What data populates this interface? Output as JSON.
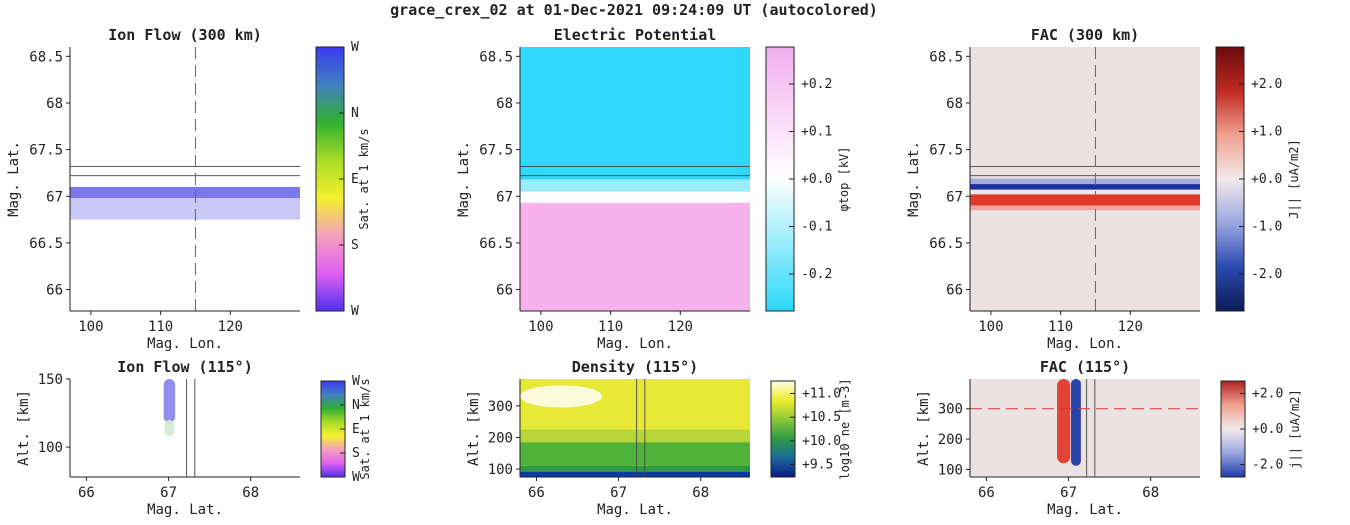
{
  "figure": {
    "title": "grace_crex_02 at 01-Dec-2021 09:24:09 UT (autocolored)"
  },
  "chart_data": [
    {
      "id": "ion-flow-map",
      "type": "heatmap",
      "title": "Ion Flow (300 km)",
      "xlabel": "Mag. Lon.",
      "ylabel": "Mag. Lat.",
      "xlim": [
        97,
        130
      ],
      "ylim": [
        65.77,
        68.6
      ],
      "xticks": [
        {
          "v": 100,
          "t": "100"
        },
        {
          "v": 110,
          "t": "110"
        },
        {
          "v": 120,
          "t": "120"
        }
      ],
      "yticks": [
        {
          "v": 68.5,
          "t": "68.5"
        },
        {
          "v": 68,
          "t": "68"
        },
        {
          "v": 67.5,
          "t": "67.5"
        },
        {
          "v": 67,
          "t": "67"
        },
        {
          "v": 66.5,
          "t": "66.5"
        },
        {
          "v": 66,
          "t": "66"
        }
      ],
      "background": "#ffffff",
      "bands": [
        {
          "y0": 66.98,
          "y1": 67.1,
          "color": "#7c78ec"
        },
        {
          "y0": 66.75,
          "y1": 66.98,
          "color": "#c9c8f6"
        }
      ],
      "hlines": [
        67.22,
        67.32
      ],
      "vline_dashed": 115,
      "colorbar": {
        "label": "Sat. at 1 km/s",
        "ticks": [
          "W",
          "N",
          "E",
          "S",
          "W"
        ],
        "stops": [
          "#3a3aef",
          "#4080c0",
          "#30b030",
          "#a8dc28",
          "#f4f02c",
          "#f4a0c0",
          "#e060f0",
          "#5030f0"
        ]
      }
    },
    {
      "id": "potential-map",
      "type": "heatmap",
      "title": "Electric Potential",
      "xlabel": "Mag. Lon.",
      "ylabel": "Mag. Lat.",
      "xlim": [
        97,
        130
      ],
      "ylim": [
        65.77,
        68.6
      ],
      "xticks": [
        {
          "v": 100,
          "t": "100"
        },
        {
          "v": 110,
          "t": "110"
        },
        {
          "v": 120,
          "t": "120"
        }
      ],
      "yticks": [
        {
          "v": 68.5,
          "t": "68.5"
        },
        {
          "v": 68,
          "t": "68"
        },
        {
          "v": 67.5,
          "t": "67.5"
        },
        {
          "v": 67,
          "t": "67"
        },
        {
          "v": 66.5,
          "t": "66.5"
        },
        {
          "v": 66,
          "t": "66"
        }
      ],
      "background": "#f7b2ee",
      "bands": [
        {
          "y0": 67.18,
          "y1": 68.6,
          "color": "#2fd9fb"
        },
        {
          "y0": 67.05,
          "y1": 67.18,
          "color": "#9aeefc"
        },
        {
          "y0": 66.93,
          "y1": 67.05,
          "color": "#ffffff"
        }
      ],
      "hlines": [
        67.22,
        67.32
      ],
      "colorbar": {
        "label": "φtop [kV]",
        "ticks": [
          "+0.2",
          "+0.1",
          "+0.0",
          "-0.1",
          "-0.2"
        ],
        "stops": [
          "#f3aef0",
          "#ffffff",
          "#2bd8fb"
        ]
      }
    },
    {
      "id": "fac-map",
      "type": "heatmap",
      "title": "FAC (300 km)",
      "xlabel": "Mag. Lon.",
      "ylabel": "Mag. Lat.",
      "xlim": [
        97,
        130
      ],
      "ylim": [
        65.77,
        68.6
      ],
      "xticks": [
        {
          "v": 100,
          "t": "100"
        },
        {
          "v": 110,
          "t": "110"
        },
        {
          "v": 120,
          "t": "120"
        }
      ],
      "yticks": [
        {
          "v": 68.5,
          "t": "68.5"
        },
        {
          "v": 68,
          "t": "68"
        },
        {
          "v": 67.5,
          "t": "67.5"
        },
        {
          "v": 67,
          "t": "67"
        },
        {
          "v": 66.5,
          "t": "66.5"
        },
        {
          "v": 66,
          "t": "66"
        }
      ],
      "background": "#ece1e3",
      "bands": [
        {
          "y0": 67.13,
          "y1": 67.19,
          "color": "#a6aadd"
        },
        {
          "y0": 67.07,
          "y1": 67.13,
          "color": "#1b2f9e"
        },
        {
          "y0": 67.02,
          "y1": 67.07,
          "color": "#f3e9ea"
        },
        {
          "y0": 66.9,
          "y1": 67.02,
          "color": "#e03a2c"
        },
        {
          "y0": 66.85,
          "y1": 66.9,
          "color": "#eea49a"
        }
      ],
      "hlines": [
        67.22,
        67.32
      ],
      "vline_dashed": 115,
      "colorbar": {
        "label": "J|| [uA/m2]",
        "ticks": [
          "+2.0",
          "+1.0",
          "+0.0",
          "-1.0",
          "-2.0"
        ],
        "stops": [
          "#6a0a0c",
          "#c02a22",
          "#f0a090",
          "#f2eaea",
          "#9aa6e0",
          "#2a4ab0",
          "#0b1a55"
        ]
      }
    },
    {
      "id": "ion-flow-profile",
      "type": "heatmap",
      "title": "Ion Flow (115°)",
      "xlabel": "Mag. Lat.",
      "ylabel": "Alt. [km]",
      "xlim": [
        65.8,
        68.6
      ],
      "ylim": [
        78,
        150
      ],
      "xticks": [
        {
          "v": 66,
          "t": "66"
        },
        {
          "v": 67,
          "t": "67"
        },
        {
          "v": 68,
          "t": "68"
        }
      ],
      "yticks": [
        {
          "v": 150,
          "t": "150"
        },
        {
          "v": 100,
          "t": "100"
        }
      ],
      "background": "#ffffff",
      "blobs": [
        {
          "x0": 66.94,
          "x1": 67.08,
          "y0": 118,
          "y1": 150,
          "color": "#8b88ec"
        },
        {
          "x0": 66.95,
          "x1": 67.07,
          "y0": 108,
          "y1": 120,
          "color": "#d5e9d5"
        }
      ],
      "vlines": [
        67.22,
        67.32
      ],
      "colorbar": {
        "label": "Sat. at 1 km/s",
        "ticks": [
          "W",
          "N",
          "E",
          "S",
          "W"
        ],
        "stops": [
          "#3a3aef",
          "#4080c0",
          "#30b030",
          "#a8dc28",
          "#f4f02c",
          "#f4a0c0",
          "#e060f0",
          "#5030f0"
        ]
      }
    },
    {
      "id": "density-profile",
      "type": "heatmap",
      "title": "Density (115°)",
      "xlabel": "Mag. Lat.",
      "ylabel": "Alt. [km]",
      "xlim": [
        65.8,
        68.6
      ],
      "ylim": [
        75,
        385
      ],
      "xticks": [
        {
          "v": 66,
          "t": "66"
        },
        {
          "v": 67,
          "t": "67"
        },
        {
          "v": 68,
          "t": "68"
        }
      ],
      "yticks": [
        {
          "v": 300,
          "t": "300"
        },
        {
          "v": 200,
          "t": "200"
        },
        {
          "v": 100,
          "t": "100"
        }
      ],
      "background": "#e8e836",
      "bands": [
        {
          "y0": 75,
          "y1": 92,
          "color": "#0b3aa6"
        },
        {
          "y0": 92,
          "y1": 110,
          "color": "#2c9b40"
        },
        {
          "y0": 110,
          "y1": 185,
          "color": "#4fb23a"
        },
        {
          "y0": 185,
          "y1": 225,
          "color": "#b7d63a"
        }
      ],
      "blobs": [
        {
          "x0": 65.8,
          "x1": 66.8,
          "y0": 295,
          "y1": 365,
          "color": "#fbfbe6"
        }
      ],
      "vlines": [
        67.22,
        67.32
      ],
      "colorbar": {
        "label": "log10 ne [m-3]",
        "ticks": [
          "+11.0",
          "+10.5",
          "+10.0",
          "+9.5"
        ],
        "stops": [
          "#ffffe8",
          "#eeee30",
          "#8cc83a",
          "#2e9a44",
          "#1a6a9a",
          "#0a1a88"
        ]
      }
    },
    {
      "id": "fac-profile",
      "type": "heatmap",
      "title": "FAC (115°)",
      "xlabel": "Mag. Lat.",
      "ylabel": "Alt. [km]",
      "xlim": [
        65.8,
        68.6
      ],
      "ylim": [
        75,
        398
      ],
      "xticks": [
        {
          "v": 66,
          "t": "66"
        },
        {
          "v": 67,
          "t": "67"
        },
        {
          "v": 68,
          "t": "68"
        }
      ],
      "yticks": [
        {
          "v": 300,
          "t": "300"
        },
        {
          "v": 200,
          "t": "200"
        },
        {
          "v": 100,
          "t": "100"
        }
      ],
      "background": "#ece1e3",
      "blobs": [
        {
          "x0": 66.86,
          "x1": 67.02,
          "y0": 120,
          "y1": 398,
          "color": "#e23a2a"
        },
        {
          "x0": 67.03,
          "x1": 67.15,
          "y0": 112,
          "y1": 398,
          "color": "#1f3aa8"
        }
      ],
      "vlines": [
        67.22,
        67.32
      ],
      "hline_dashed": 300,
      "colorbar": {
        "label": "j|| [uA/m2]",
        "ticks": [
          "+2.0",
          "+0.0",
          "-2.0"
        ],
        "stops": [
          "#b02020",
          "#f0a090",
          "#f2eaea",
          "#9aa6e0",
          "#1e3aa8"
        ]
      }
    }
  ]
}
